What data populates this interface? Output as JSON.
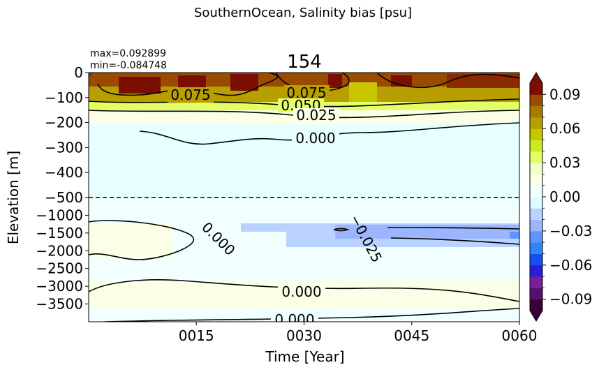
{
  "suptitle": "SouthernOcean, Salinity bias [psu]",
  "title": "154",
  "stats": {
    "max": "max=0.092899",
    "min": "min=-0.084748"
  },
  "chart_data": {
    "type": "heatmap",
    "xlabel": "Time [Year]",
    "ylabel": "Elevation [m]",
    "x_ticks": [
      "0015",
      "0030",
      "0045",
      "0060"
    ],
    "x_tick_values": [
      15,
      30,
      45,
      60
    ],
    "xlim": [
      0,
      60
    ],
    "y_axis_upper": {
      "range": [
        -500,
        0
      ],
      "ticks": [
        0,
        -100,
        -200,
        -300,
        -400,
        -500
      ],
      "tick_labels": [
        "0",
        "−100",
        "−200",
        "−300",
        "−400",
        "−500"
      ]
    },
    "y_axis_lower": {
      "range": [
        -4000,
        -500
      ],
      "ticks": [
        -1000,
        -1500,
        -2000,
        -2500,
        -3000,
        -3500
      ],
      "tick_labels": [
        "−1000",
        "−1500",
        "−2000",
        "−2500",
        "−3000",
        "−3500"
      ]
    },
    "split_depth": -500,
    "colorbar": {
      "range": [
        -0.1,
        0.1
      ],
      "ticks": [
        0.09,
        0.06,
        0.03,
        0.0,
        -0.03,
        -0.06,
        -0.09
      ],
      "tick_labels": [
        "0.09",
        "0.06",
        "0.03",
        "0.00",
        "−0.03",
        "−0.06",
        "−0.09"
      ],
      "levels": 20,
      "extend": "both"
    },
    "colormap": [
      "#3a0036",
      "#5a0f6a",
      "#7a1f9a",
      "#2d1dd6",
      "#1650f0",
      "#2f86f6",
      "#5f95ff",
      "#9bb5ff",
      "#b9d2ff",
      "#d8fdff",
      "#f2ffff",
      "#fbffe6",
      "#f0ffcc",
      "#e3ff66",
      "#cdea20",
      "#c7c600",
      "#b89e00",
      "#a87a00",
      "#9a4b00",
      "#7a0e00"
    ],
    "contours": [
      {
        "label": "0.075",
        "value": 0.075
      },
      {
        "label": "0.050",
        "value": 0.05
      },
      {
        "label": "0.025",
        "value": 0.025
      },
      {
        "label": "0.000",
        "value": 0.0
      },
      {
        "label": "−0.025",
        "value": -0.025
      }
    ],
    "field_description_rows": [
      {
        "depth": [
          0,
          -60
        ],
        "value": 0.085
      },
      {
        "depth": [
          -60,
          -120
        ],
        "value": 0.065
      },
      {
        "depth": [
          -120,
          -160
        ],
        "value": 0.035
      },
      {
        "depth": [
          -160,
          -220
        ],
        "value": 0.012
      },
      {
        "depth": [
          -220,
          -500
        ],
        "value": -0.002
      },
      {
        "depth": [
          -500,
          -1300
        ],
        "value": -0.004
      },
      {
        "depth": [
          -1300,
          -1800
        ],
        "value": -0.03
      },
      {
        "depth": [
          -1800,
          -4000
        ],
        "value": 0.002
      }
    ]
  }
}
